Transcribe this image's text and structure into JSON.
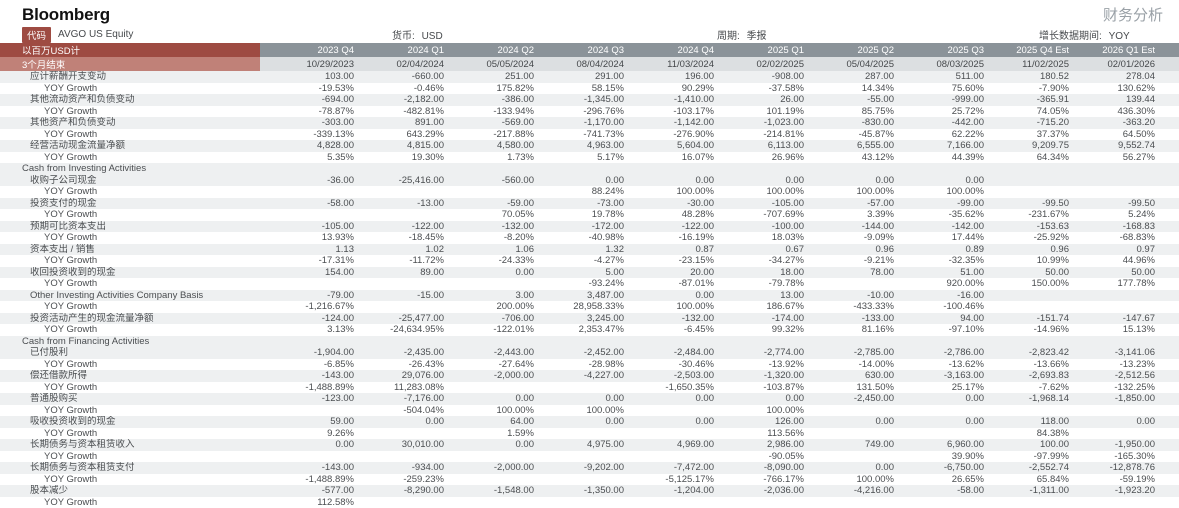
{
  "brand": {
    "logo": "Bloomberg"
  },
  "header": {
    "title": "财务分析"
  },
  "meta": {
    "code_label": "代码",
    "code_value": "AVGO US Equity",
    "currency_label": "货币:",
    "currency_value": "USD",
    "period_label": "周期:",
    "period_value": "季报",
    "growth_label": "增长数据期间:",
    "growth_value": "YOY"
  },
  "table": {
    "unit_label": "以百万USD计",
    "period_end_label": "3个月结束",
    "quarters": [
      "2023 Q4",
      "2024 Q1",
      "2024 Q2",
      "2024 Q3",
      "2024 Q4",
      "2025 Q1",
      "2025 Q2",
      "2025 Q3",
      "2025 Q4 Est",
      "2026 Q1 Est"
    ],
    "dates": [
      "10/29/2023",
      "02/04/2024",
      "05/05/2024",
      "08/04/2024",
      "11/03/2024",
      "02/02/2025",
      "05/04/2025",
      "08/03/2025",
      "11/02/2025",
      "02/01/2026"
    ],
    "rows": [
      {
        "label": "应计薪酬开支变动",
        "type": "item",
        "values": [
          "103.00",
          "-660.00",
          "251.00",
          "291.00",
          "196.00",
          "-908.00",
          "287.00",
          "511.00",
          "180.52",
          "278.04"
        ]
      },
      {
        "label": "YOY Growth",
        "type": "growth",
        "values": [
          "-19.53%",
          "-0.46%",
          "175.82%",
          "58.15%",
          "90.29%",
          "-37.58%",
          "14.34%",
          "75.60%",
          "-7.90%",
          "130.62%"
        ]
      },
      {
        "label": "其他流动资产和负债变动",
        "type": "item",
        "values": [
          "-694.00",
          "-2,182.00",
          "-386.00",
          "-1,345.00",
          "-1,410.00",
          "26.00",
          "-55.00",
          "-999.00",
          "-365.91",
          "139.44"
        ]
      },
      {
        "label": "YOY Growth",
        "type": "growth",
        "values": [
          "-78.87%",
          "-482.81%",
          "-133.94%",
          "-296.76%",
          "-103.17%",
          "101.19%",
          "85.75%",
          "25.72%",
          "74.05%",
          "436.30%"
        ]
      },
      {
        "label": "其他资产和负债变动",
        "type": "item",
        "values": [
          "-303.00",
          "891.00",
          "-569.00",
          "-1,170.00",
          "-1,142.00",
          "-1,023.00",
          "-830.00",
          "-442.00",
          "-715.20",
          "-363.20"
        ]
      },
      {
        "label": "YOY Growth",
        "type": "growth",
        "values": [
          "-339.13%",
          "643.29%",
          "-217.88%",
          "-741.73%",
          "-276.90%",
          "-214.81%",
          "-45.87%",
          "62.22%",
          "37.37%",
          "64.50%"
        ]
      },
      {
        "label": "经营活动现金流量净额",
        "type": "item",
        "values": [
          "4,828.00",
          "4,815.00",
          "4,580.00",
          "4,963.00",
          "5,604.00",
          "6,113.00",
          "6,555.00",
          "7,166.00",
          "9,209.75",
          "9,552.74"
        ]
      },
      {
        "label": "YOY Growth",
        "type": "growth",
        "values": [
          "5.35%",
          "19.30%",
          "1.73%",
          "5.17%",
          "16.07%",
          "26.96%",
          "43.12%",
          "44.39%",
          "64.34%",
          "56.27%"
        ]
      },
      {
        "label": "Cash from Investing Activities",
        "type": "section",
        "values": []
      },
      {
        "label": "收购子公司现金",
        "type": "item",
        "values": [
          "-36.00",
          "-25,416.00",
          "-560.00",
          "0.00",
          "0.00",
          "0.00",
          "0.00",
          "0.00",
          "",
          ""
        ]
      },
      {
        "label": "YOY Growth",
        "type": "growth",
        "values": [
          "",
          "",
          "",
          "88.24%",
          "100.00%",
          "100.00%",
          "100.00%",
          "100.00%",
          "",
          ""
        ]
      },
      {
        "label": "投资支付的现金",
        "type": "item",
        "values": [
          "-58.00",
          "-13.00",
          "-59.00",
          "-73.00",
          "-30.00",
          "-105.00",
          "-57.00",
          "-99.00",
          "-99.50",
          "-99.50"
        ]
      },
      {
        "label": "YOY Growth",
        "type": "growth",
        "values": [
          "",
          "",
          "70.05%",
          "19.78%",
          "48.28%",
          "-707.69%",
          "3.39%",
          "-35.62%",
          "-231.67%",
          "5.24%"
        ]
      },
      {
        "label": "预期可比资本支出",
        "type": "item",
        "values": [
          "-105.00",
          "-122.00",
          "-132.00",
          "-172.00",
          "-122.00",
          "-100.00",
          "-144.00",
          "-142.00",
          "-153.63",
          "-168.83"
        ]
      },
      {
        "label": "YOY Growth",
        "type": "growth",
        "values": [
          "13.93%",
          "-18.45%",
          "-8.20%",
          "-40.98%",
          "-16.19%",
          "18.03%",
          "-9.09%",
          "17.44%",
          "-25.92%",
          "-68.83%"
        ]
      },
      {
        "label": "资本支出 / 销售",
        "type": "item",
        "values": [
          "1.13",
          "1.02",
          "1.06",
          "1.32",
          "0.87",
          "0.67",
          "0.96",
          "0.89",
          "0.96",
          "0.97"
        ]
      },
      {
        "label": "YOY Growth",
        "type": "growth",
        "values": [
          "-17.31%",
          "-11.72%",
          "-24.33%",
          "-4.27%",
          "-23.15%",
          "-34.27%",
          "-9.21%",
          "-32.35%",
          "10.99%",
          "44.96%"
        ]
      },
      {
        "label": "收回投资收到的现金",
        "type": "item",
        "values": [
          "154.00",
          "89.00",
          "0.00",
          "5.00",
          "20.00",
          "18.00",
          "78.00",
          "51.00",
          "50.00",
          "50.00"
        ]
      },
      {
        "label": "YOY Growth",
        "type": "growth",
        "values": [
          "",
          "",
          "",
          "-93.24%",
          "-87.01%",
          "-79.78%",
          "",
          "920.00%",
          "150.00%",
          "177.78%"
        ]
      },
      {
        "label": "Other Investing Activities Company Basis",
        "type": "item",
        "values": [
          "-79.00",
          "-15.00",
          "3.00",
          "3,487.00",
          "0.00",
          "13.00",
          "-10.00",
          "-16.00",
          "",
          ""
        ]
      },
      {
        "label": "YOY Growth",
        "type": "growth",
        "values": [
          "-1,216.67%",
          "",
          "200.00%",
          "28,958.33%",
          "100.00%",
          "186.67%",
          "-433.33%",
          "-100.46%",
          "",
          ""
        ]
      },
      {
        "label": "投资活动产生的现金流量净额",
        "type": "item",
        "values": [
          "-124.00",
          "-25,477.00",
          "-706.00",
          "3,245.00",
          "-132.00",
          "-174.00",
          "-133.00",
          "94.00",
          "-151.74",
          "-147.67"
        ]
      },
      {
        "label": "YOY Growth",
        "type": "growth",
        "values": [
          "3.13%",
          "-24,634.95%",
          "-122.01%",
          "2,353.47%",
          "-6.45%",
          "99.32%",
          "81.16%",
          "-97.10%",
          "-14.96%",
          "15.13%"
        ]
      },
      {
        "label": "Cash from Financing Activities",
        "type": "section",
        "values": []
      },
      {
        "label": "已付股利",
        "type": "item",
        "values": [
          "-1,904.00",
          "-2,435.00",
          "-2,443.00",
          "-2,452.00",
          "-2,484.00",
          "-2,774.00",
          "-2,785.00",
          "-2,786.00",
          "-2,823.42",
          "-3,141.06"
        ]
      },
      {
        "label": "YOY Growth",
        "type": "growth",
        "values": [
          "-6.85%",
          "-26.43%",
          "-27.64%",
          "-28.98%",
          "-30.46%",
          "-13.92%",
          "-14.00%",
          "-13.62%",
          "-13.66%",
          "-13.23%"
        ]
      },
      {
        "label": "偿还借款所得",
        "type": "item",
        "values": [
          "-143.00",
          "29,076.00",
          "-2,000.00",
          "-4,227.00",
          "-2,503.00",
          "-1,320.00",
          "630.00",
          "-3,163.00",
          "-2,693.83",
          "-2,512.56"
        ]
      },
      {
        "label": "YOY Growth",
        "type": "growth",
        "values": [
          "-1,488.89%",
          "11,283.08%",
          "",
          "",
          "-1,650.35%",
          "-103.87%",
          "131.50%",
          "25.17%",
          "-7.62%",
          "-132.25%"
        ]
      },
      {
        "label": "普通股购买",
        "type": "item",
        "values": [
          "-123.00",
          "-7,176.00",
          "0.00",
          "0.00",
          "0.00",
          "0.00",
          "-2,450.00",
          "0.00",
          "-1,968.14",
          "-1,850.00"
        ]
      },
      {
        "label": "YOY Growth",
        "type": "growth",
        "values": [
          "",
          "-504.04%",
          "100.00%",
          "100.00%",
          "",
          "100.00%",
          "",
          "",
          "",
          ""
        ]
      },
      {
        "label": "吸收投资收到的现金",
        "type": "item",
        "values": [
          "59.00",
          "0.00",
          "64.00",
          "0.00",
          "0.00",
          "126.00",
          "0.00",
          "0.00",
          "118.00",
          "0.00"
        ]
      },
      {
        "label": "YOY Growth",
        "type": "growth",
        "values": [
          "9.26%",
          "",
          "1.59%",
          "",
          "",
          "113.56%",
          "",
          "",
          "84.38%",
          ""
        ]
      },
      {
        "label": "长期债务与资本租赁收入",
        "type": "item",
        "values": [
          "0.00",
          "30,010.00",
          "0.00",
          "4,975.00",
          "4,969.00",
          "2,986.00",
          "749.00",
          "6,960.00",
          "100.00",
          "-1,950.00"
        ]
      },
      {
        "label": "YOY Growth",
        "type": "growth",
        "values": [
          "",
          "",
          "",
          "",
          "",
          "-90.05%",
          "",
          "39.90%",
          "-97.99%",
          "-165.30%"
        ]
      },
      {
        "label": "长期债务与资本租赁支付",
        "type": "item",
        "values": [
          "-143.00",
          "-934.00",
          "-2,000.00",
          "-9,202.00",
          "-7,472.00",
          "-8,090.00",
          "0.00",
          "-6,750.00",
          "-2,552.74",
          "-12,878.76"
        ]
      },
      {
        "label": "YOY Growth",
        "type": "growth",
        "values": [
          "-1,488.89%",
          "-259.23%",
          "",
          "",
          "-5,125.17%",
          "-766.17%",
          "100.00%",
          "26.65%",
          "65.84%",
          "-59.19%"
        ]
      },
      {
        "label": "股本减少",
        "type": "item",
        "values": [
          "-577.00",
          "-8,290.00",
          "-1,548.00",
          "-1,350.00",
          "-1,204.00",
          "-2,036.00",
          "-4,216.00",
          "-58.00",
          "-1,311.00",
          "-1,923.20"
        ]
      },
      {
        "label": "YOY Growth",
        "type": "growth",
        "values": [
          "112.58%",
          "",
          "",
          "",
          "",
          "",
          "",
          "",
          "",
          ""
        ]
      }
    ]
  }
}
